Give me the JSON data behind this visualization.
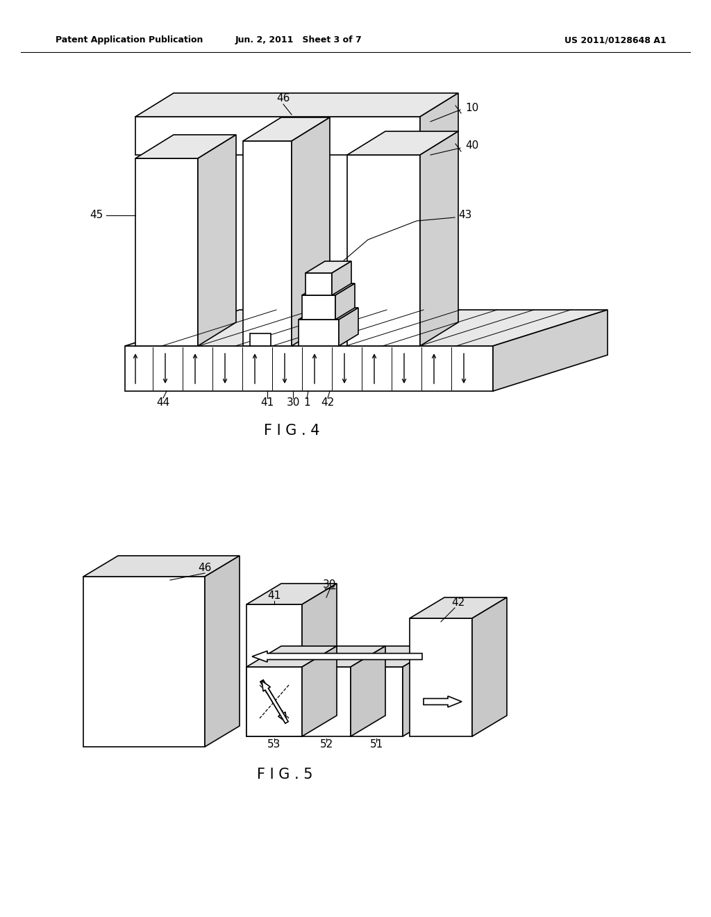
{
  "bg_color": "#ffffff",
  "header_left": "Patent Application Publication",
  "header_center": "Jun. 2, 2011   Sheet 3 of 7",
  "header_right": "US 2011/0128648 A1",
  "fig4_label": "FIG. 4",
  "fig5_label": "FIG. 5",
  "fig_width": 10.24,
  "fig_height": 13.2,
  "dpi": 100
}
